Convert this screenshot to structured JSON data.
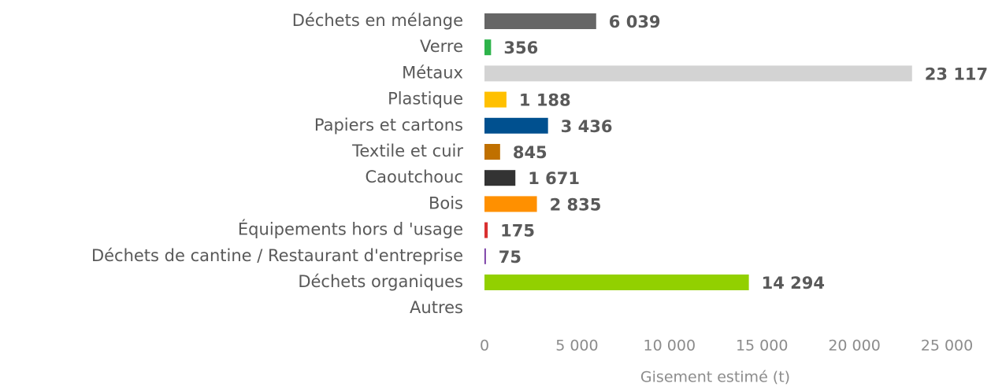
{
  "chart_data": {
    "type": "barh",
    "categories": [
      "Déchets en mélange",
      "Verre",
      "Métaux",
      "Plastique",
      "Papiers et cartons",
      "Textile et cuir",
      "Caoutchouc",
      "Bois",
      "Équipements hors d 'usage",
      "Déchets de cantine / Restaurant d'entreprise",
      "Déchets organiques",
      "Autres"
    ],
    "values": [
      6039,
      356,
      23117,
      1188,
      3436,
      845,
      1671,
      2835,
      175,
      75,
      14294,
      null
    ],
    "value_labels": [
      "6 039",
      "356",
      "23 117",
      "1 188",
      "3 436",
      "845",
      "1 671",
      "2 835",
      "175",
      "75",
      "14 294",
      null
    ],
    "colors": [
      "#666666",
      "#2db34a",
      "#d3d3d3",
      "#ffc000",
      "#00508f",
      "#c07000",
      "#333333",
      "#ff9000",
      "#d93030",
      "#7030a0",
      "#92d000",
      null
    ],
    "xlabel": "Gisement estimé (t)",
    "xlim": [
      0,
      25000
    ],
    "xticks": [
      0,
      {
        "value": 5000,
        "label": "5 000"
      },
      {
        "value": 10000,
        "label": "10 000"
      },
      {
        "value": 15000,
        "label": "15 000"
      },
      {
        "value": 20000,
        "label": "20 000"
      },
      {
        "value": 25000,
        "label": "25 000"
      }
    ],
    "grid": false
  }
}
